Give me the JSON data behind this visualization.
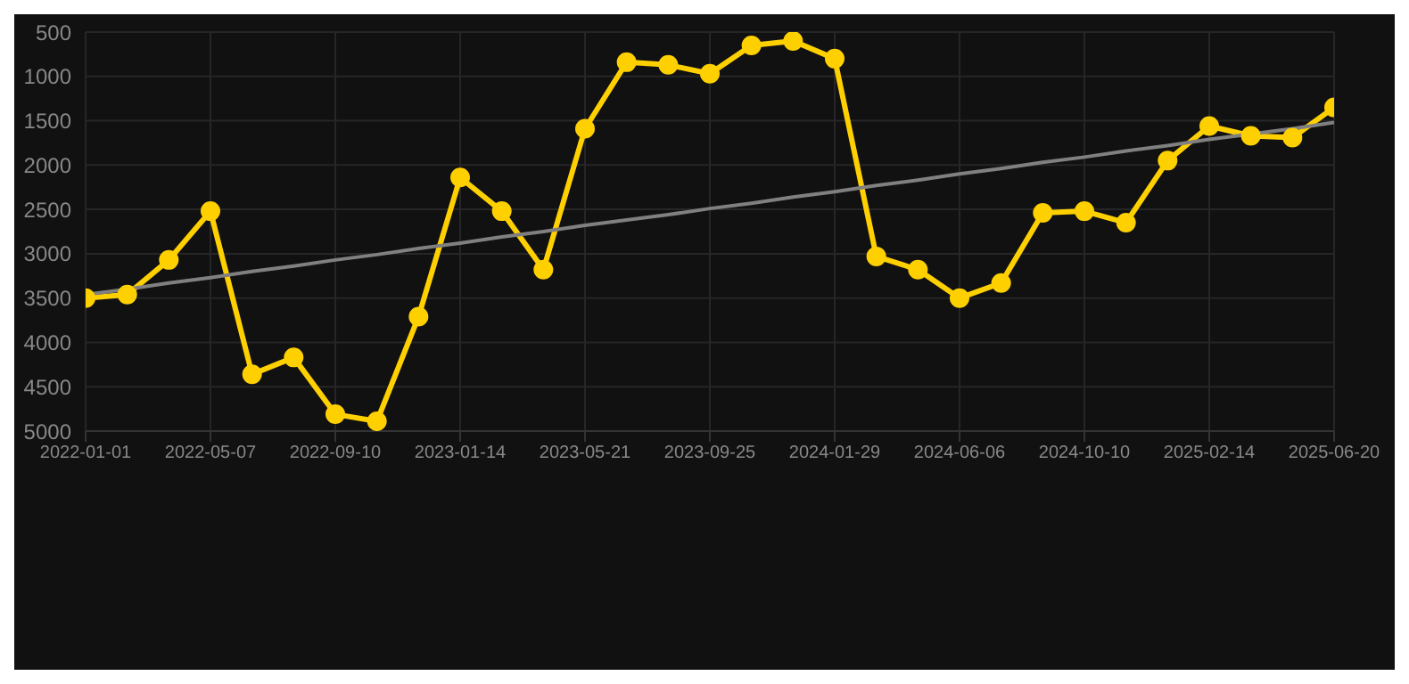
{
  "chart_data": {
    "type": "line",
    "categories": [
      "2022-01-01",
      null,
      null,
      "2022-05-07",
      null,
      null,
      "2022-09-10",
      null,
      null,
      "2023-01-14",
      null,
      null,
      "2023-05-21",
      null,
      null,
      "2023-09-25",
      null,
      null,
      "2024-01-29",
      null,
      null,
      "2024-06-06",
      null,
      null,
      "2024-10-10",
      null,
      null,
      "2025-02-14",
      null,
      null,
      "2025-06-20"
    ],
    "series": [
      {
        "color": "#ffd000",
        "values": [
          3500,
          3460,
          3070,
          2520,
          4360,
          4170,
          4810,
          4890,
          3710,
          2140,
          2520,
          3180,
          1590,
          840,
          870,
          970,
          650,
          600,
          800,
          3030,
          3180,
          3500,
          3330,
          2540,
          2520,
          2650,
          1950,
          1560,
          1670,
          1690,
          1350
        ]
      },
      {
        "type": "line",
        "color": "#808080",
        "values": [
          3460,
          3400,
          3330,
          3270,
          3200,
          3140,
          3070,
          3010,
          2940,
          2880,
          2810,
          2750,
          2680,
          2620,
          2560,
          2490,
          2430,
          2360,
          2300,
          2230,
          2170,
          2100,
          2040,
          1970,
          1910,
          1840,
          1780,
          1710,
          1650,
          1590,
          1520
        ],
        "marker": "none"
      }
    ],
    "ylim": [
      5000,
      500
    ],
    "yticks": [
      500,
      1000,
      1500,
      2000,
      2500,
      3000,
      3500,
      4000,
      4500,
      5000
    ],
    "grid": true,
    "marker": "circle"
  }
}
